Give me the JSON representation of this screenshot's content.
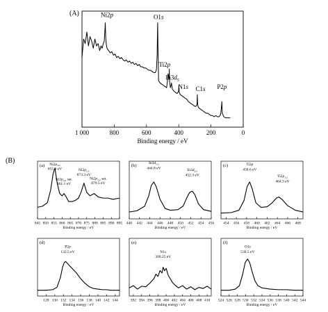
{
  "figure": {
    "label_a": "(A)",
    "label_b": "(B)"
  },
  "chart_data": [
    {
      "id": "A",
      "type": "line",
      "panel_label": "(A)",
      "xlabel": "Binding energy / eV",
      "ylabel": "",
      "reversed_x": true,
      "xlim": [
        1000,
        0
      ],
      "ylim": [
        0,
        100
      ],
      "xticks": [
        1000,
        800,
        600,
        400,
        200,
        0
      ],
      "xtick_labels": [
        "1 000",
        "800",
        "600",
        "400",
        "200",
        "0"
      ],
      "series": [
        {
          "x": [
            1000,
            990,
            980,
            970,
            960,
            950,
            940,
            930,
            920,
            910,
            900,
            890,
            882,
            875,
            868,
            862,
            857,
            855.6,
            853,
            850,
            845,
            835,
            825,
            815,
            805,
            795,
            785,
            775,
            765,
            755,
            745,
            735,
            725,
            715,
            705,
            695,
            685,
            675,
            665,
            655,
            645,
            635,
            625,
            615,
            605,
            595,
            585,
            575,
            565,
            555,
            545,
            538,
            534,
            532,
            530.5,
            529,
            525,
            515,
            505,
            495,
            485,
            475,
            470,
            466,
            462,
            459,
            458.6,
            457,
            452,
            448,
            444.8,
            440,
            430,
            420,
            410,
            405,
            401,
            399.2,
            397,
            390,
            380,
            370,
            360,
            350,
            340,
            330,
            320,
            310,
            300,
            292,
            286,
            285,
            282,
            278,
            270,
            260,
            250,
            240,
            230,
            220,
            210,
            200,
            190,
            180,
            170,
            160,
            150,
            140,
            134,
            132.5,
            130,
            120,
            110,
            100,
            90,
            80
          ],
          "y": [
            60,
            76,
            72,
            82,
            70,
            78,
            74,
            68,
            76,
            70,
            72,
            66,
            70,
            68,
            72,
            74,
            86,
            90,
            78,
            72,
            68,
            66,
            64,
            65,
            62,
            63,
            60,
            61,
            59,
            60,
            58,
            57,
            58,
            56,
            57,
            55,
            56,
            54,
            55,
            53,
            54,
            52,
            52,
            51,
            51,
            50,
            49,
            49,
            48,
            47,
            47,
            50,
            62,
            80,
            90,
            72,
            40,
            38,
            37,
            36,
            35,
            34,
            40,
            46,
            44,
            42,
            50,
            40,
            34,
            36,
            38,
            33,
            31,
            30,
            29,
            30,
            31,
            36,
            30,
            28,
            27,
            26,
            25,
            24,
            22,
            21,
            20,
            19,
            18,
            18,
            20,
            28,
            19,
            17,
            16,
            15,
            14,
            13,
            12,
            12,
            11,
            10,
            10,
            9,
            10,
            9,
            9,
            11,
            19,
            22,
            12,
            9,
            8,
            8,
            8,
            8
          ]
        }
      ],
      "annotations": [
        {
          "text": "Ni2p",
          "x": 845,
          "y": 95
        },
        {
          "text": "O1s",
          "x": 525,
          "y": 93
        },
        {
          "text": "Ti2p",
          "x": 488,
          "y": 52
        },
        {
          "text": "In3d5",
          "x": 440,
          "y": 41
        },
        {
          "text": "N1s",
          "x": 372,
          "y": 33
        },
        {
          "text": "C1s",
          "x": 265,
          "y": 31
        },
        {
          "text": "P2p",
          "x": 132,
          "y": 33
        }
      ]
    },
    {
      "id": "B-a",
      "type": "line",
      "panel_label": "(a)",
      "xlabel": "Binding energy / eV",
      "xlim": [
        845,
        895
      ],
      "ylim": [
        0,
        100
      ],
      "xticks": [
        845,
        850,
        855,
        860,
        865,
        870,
        875,
        880,
        885,
        890,
        895
      ],
      "series": [
        {
          "x": [
            845,
            848,
            851,
            853,
            854.5,
            855.6,
            857,
            858.5,
            860,
            861.1,
            862.5,
            864,
            866,
            868,
            870,
            871.5,
            873.3,
            875,
            877,
            879.5,
            882,
            885,
            888,
            891,
            895
          ],
          "y": [
            20,
            22,
            28,
            50,
            78,
            88,
            62,
            44,
            40,
            44,
            38,
            30,
            30,
            32,
            36,
            46,
            62,
            46,
            40,
            44,
            38,
            36,
            36,
            34,
            36
          ]
        }
      ],
      "annotations": [
        {
          "text": "Ni2p3/2",
          "x": 855.6,
          "y": 93
        },
        {
          "text": "855.6 eV",
          "x": 855.6,
          "y": 85
        },
        {
          "text": "Ni2p3/2 sat.",
          "x": 861.1,
          "y": 67
        },
        {
          "text": "861.1 eV",
          "x": 861.1,
          "y": 59
        },
        {
          "text": "Ni2p1/2",
          "x": 873.3,
          "y": 83
        },
        {
          "text": "873.3 eV",
          "x": 873.3,
          "y": 75
        },
        {
          "text": "Ni2p1/2 sat.",
          "x": 882,
          "y": 68
        },
        {
          "text": "879.5 eV",
          "x": 882,
          "y": 60
        }
      ]
    },
    {
      "id": "B-b",
      "type": "line",
      "panel_label": "(b)",
      "xlabel": "Binding energy / eV",
      "xlim": [
        440,
        456
      ],
      "ylim": [
        0,
        100
      ],
      "xticks": [
        440,
        442,
        444,
        446,
        448,
        450,
        452,
        454,
        456
      ],
      "series": [
        {
          "x": [
            440,
            441.5,
            443,
            443.8,
            444.3,
            444.8,
            445.3,
            446,
            447,
            448,
            449.5,
            450.5,
            451.3,
            451.8,
            452.3,
            452.8,
            453.5,
            454.5,
            456
          ],
          "y": [
            12,
            14,
            22,
            40,
            58,
            64,
            55,
            34,
            18,
            15,
            16,
            22,
            38,
            46,
            48,
            42,
            26,
            16,
            13
          ]
        }
      ],
      "annotations": [
        {
          "text": "In3d5/2",
          "x": 444.8,
          "y": 95
        },
        {
          "text": "444.8 eV",
          "x": 444.8,
          "y": 86
        },
        {
          "text": "In3d3/2",
          "x": 452.3,
          "y": 83
        },
        {
          "text": "452.3 eV",
          "x": 452.3,
          "y": 74
        }
      ]
    },
    {
      "id": "B-c",
      "type": "line",
      "panel_label": "(c)",
      "xlabel": "Binding energy / eV",
      "xlim": [
        453,
        469
      ],
      "ylim": [
        0,
        100
      ],
      "xticks": [
        454,
        456,
        458,
        460,
        462,
        464,
        466,
        468
      ],
      "xtick_labels": [
        "454",
        "456",
        "458",
        "460",
        "462",
        "464",
        "466",
        "468"
      ],
      "series": [
        {
          "x": [
            453,
            455,
            456.5,
            457.5,
            458.1,
            458.6,
            459.1,
            459.8,
            460.8,
            462,
            463,
            463.8,
            464.3,
            465,
            466,
            467.5,
            469
          ],
          "y": [
            10,
            11,
            15,
            32,
            56,
            64,
            52,
            28,
            20,
            21,
            28,
            36,
            38,
            33,
            23,
            15,
            12
          ]
        }
      ],
      "annotations": [
        {
          "text": "Ti2p",
          "x": 458.6,
          "y": 93
        },
        {
          "text": "458.6 eV",
          "x": 458.6,
          "y": 84
        },
        {
          "text": "Ti2p1/2",
          "x": 465,
          "y": 72
        },
        {
          "text": "464.3 eV",
          "x": 465,
          "y": 63
        }
      ]
    },
    {
      "id": "B-d",
      "type": "line",
      "panel_label": "(d)",
      "xlabel": "Binding energy / eV",
      "xlim": [
        126,
        145
      ],
      "ylim": [
        0,
        100
      ],
      "xticks": [
        128,
        130,
        132,
        134,
        136,
        138,
        140,
        142,
        144
      ],
      "series": [
        {
          "x": [
            126,
            128,
            129.5,
            130.5,
            131.3,
            131.8,
            132.2,
            132.5,
            133,
            134,
            135,
            136,
            137,
            138,
            139,
            140,
            141,
            142,
            143,
            145
          ],
          "y": [
            10,
            10,
            11,
            15,
            32,
            50,
            58,
            60,
            56,
            48,
            40,
            30,
            22,
            16,
            13,
            12,
            11,
            11,
            10,
            10
          ]
        }
      ],
      "annotations": [
        {
          "text": "P2p",
          "x": 133,
          "y": 84
        },
        {
          "text": "132.5 eV",
          "x": 133,
          "y": 75
        }
      ]
    },
    {
      "id": "B-e",
      "type": "line",
      "panel_label": "(e)",
      "xlabel": "Binding energy / eV",
      "xlim": [
        391,
        411
      ],
      "ylim": [
        0,
        100
      ],
      "xticks": [
        392,
        394,
        396,
        398,
        400,
        402,
        404,
        406,
        408,
        410
      ],
      "series": [
        {
          "x": [
            391,
            392,
            393,
            394,
            395,
            396,
            397,
            397.5,
            398,
            398.5,
            399,
            399.25,
            399.6,
            400,
            400.5,
            401,
            401.5,
            402,
            403,
            404,
            405,
            406,
            407,
            408,
            409,
            410,
            411
          ],
          "y": [
            14,
            18,
            12,
            17,
            16,
            22,
            30,
            38,
            34,
            44,
            40,
            50,
            44,
            48,
            36,
            30,
            24,
            20,
            14,
            18,
            12,
            16,
            11,
            15,
            13,
            17,
            12
          ]
        }
      ],
      "annotations": [
        {
          "text": "N1s",
          "x": 399.25,
          "y": 75
        },
        {
          "text": "399.25 eV",
          "x": 399.25,
          "y": 66
        }
      ]
    },
    {
      "id": "B-f",
      "type": "line",
      "panel_label": "(f)",
      "xlabel": "Binding energy / eV",
      "xlim": [
        524,
        544
      ],
      "ylim": [
        0,
        100
      ],
      "xticks": [
        524,
        526,
        528,
        530,
        532,
        534,
        536,
        538,
        540,
        542,
        544
      ],
      "series": [
        {
          "x": [
            524,
            526,
            527.5,
            528.5,
            529.3,
            529.9,
            530.5,
            531,
            531.6,
            532.3,
            533,
            534,
            536,
            538,
            540,
            542,
            544
          ],
          "y": [
            10,
            10,
            12,
            18,
            38,
            58,
            64,
            58,
            42,
            26,
            18,
            14,
            12,
            11,
            11,
            10,
            10
          ]
        }
      ],
      "annotations": [
        {
          "text": "O1s",
          "x": 530.5,
          "y": 84
        },
        {
          "text": "530.5 eV",
          "x": 530.5,
          "y": 75
        }
      ]
    }
  ]
}
